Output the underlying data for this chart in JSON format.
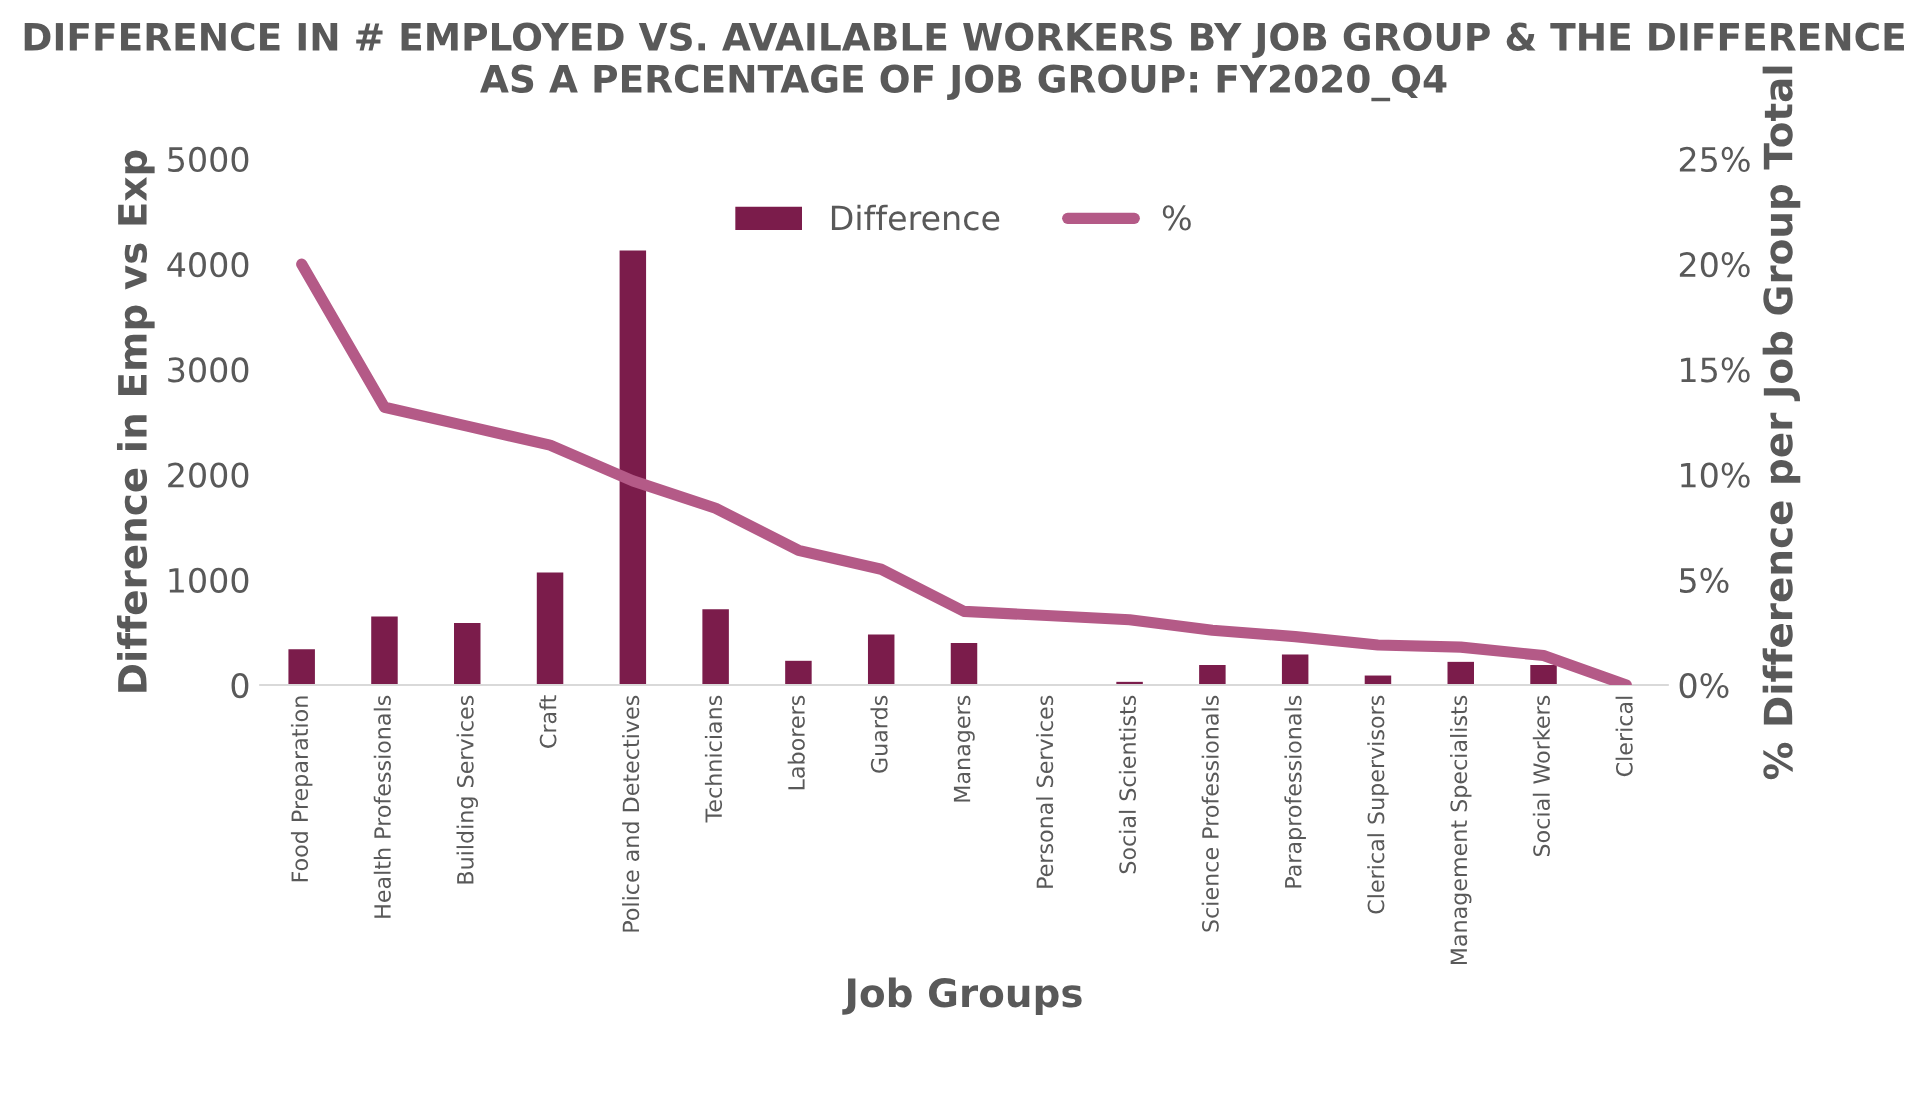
{
  "chart_data": {
    "type": "bar",
    "title": "DIFFERENCE IN # EMPLOYED VS. AVAILABLE WORKERS BY JOB GROUP & THE DIFFERENCE AS A PERCENTAGE OF JOB GROUP: FY2020_Q4",
    "xlabel": "Job Groups",
    "ylabel": "Difference in Emp vs Exp",
    "y2label": "% Difference per Job Group Total",
    "categories": [
      "Food Preparation",
      "Health Professionals",
      "Building Services",
      "Craft",
      "Police and Detectives",
      "Technicians",
      "Laborers",
      "Guards",
      "Managers",
      "Personal Services",
      "Social Scientists",
      "Science Professionals",
      "Paraprofessionals",
      "Clerical Supervisors",
      "Management Specialists",
      "Social Workers",
      "Clerical"
    ],
    "series": [
      {
        "name": "Difference",
        "color": "#7b1c4b",
        "values": [
          340,
          650,
          590,
          1070,
          4130,
          720,
          230,
          480,
          400,
          0,
          30,
          190,
          290,
          90,
          220,
          190,
          0
        ]
      },
      {
        "name": "%",
        "type": "line",
        "axis": "y2",
        "color": "#b45a87",
        "values": [
          20,
          13.2,
          12.3,
          11.4,
          9.7,
          8.4,
          6.4,
          5.5,
          3.5,
          3.3,
          3.1,
          2.6,
          2.3,
          1.9,
          1.8,
          1.4,
          0
        ]
      }
    ],
    "ylim": [
      0,
      5000
    ],
    "yticks": [
      0,
      1000,
      2000,
      3000,
      4000,
      5000
    ],
    "y2lim": [
      0,
      25
    ],
    "y2ticks": [
      {
        "value": 0,
        "label": "0%"
      },
      {
        "value": 5,
        "label": "5%"
      },
      {
        "value": 10,
        "label": "10%"
      },
      {
        "value": 15,
        "label": "15%"
      },
      {
        "value": 20,
        "label": "20%"
      },
      {
        "value": 25,
        "label": "25%"
      }
    ],
    "legend": "top",
    "grid": false,
    "marker": "none",
    "line_style": "solid"
  }
}
